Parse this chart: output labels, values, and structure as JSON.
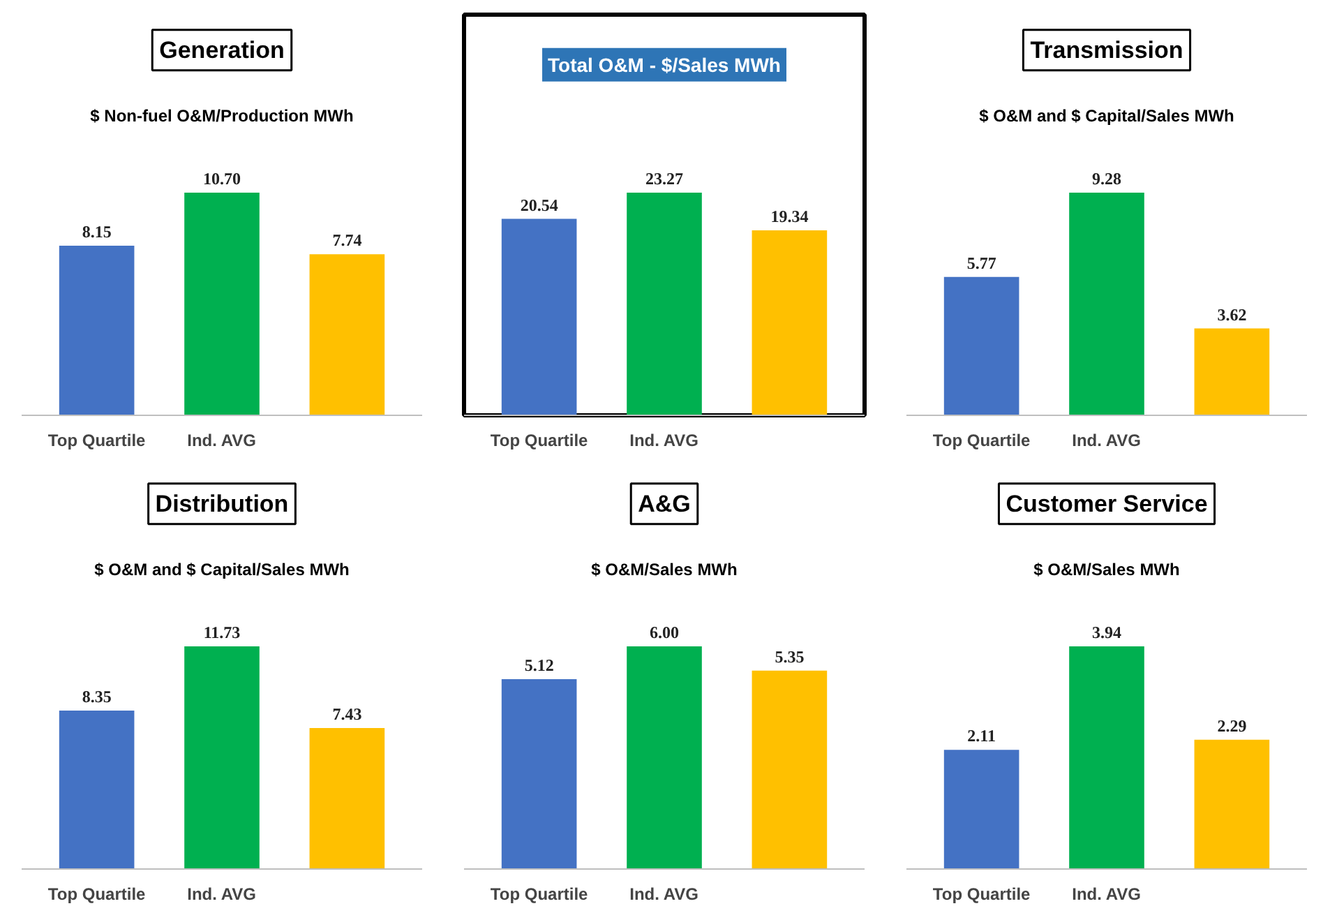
{
  "chart_data": [
    {
      "type": "bar",
      "title": "Generation",
      "subtitle": "$ Non-fuel O&M/Production MWh",
      "categories": [
        "Top Quartile",
        "Ind. AVG",
        null
      ],
      "values": [
        8.15,
        10.7,
        7.74
      ],
      "value_labels": [
        "8.15",
        "10.70",
        "7.74"
      ],
      "colors": [
        "#4472c4",
        "#00b050",
        "#ffc000"
      ]
    },
    {
      "type": "bar",
      "title": "Total O&M - $/Sales MWh",
      "categories": [
        "Top Quartile",
        "Ind. AVG",
        null
      ],
      "values": [
        20.54,
        23.27,
        19.34
      ],
      "value_labels": [
        "20.54",
        "23.27",
        "19.34"
      ],
      "colors": [
        "#4472c4",
        "#00b050",
        "#ffc000"
      ]
    },
    {
      "type": "bar",
      "title": "Transmission",
      "subtitle": "$ O&M and $ Capital/Sales MWh",
      "categories": [
        "Top Quartile",
        "Ind. AVG",
        null
      ],
      "values": [
        5.77,
        9.28,
        3.62
      ],
      "value_labels": [
        "5.77",
        "9.28",
        "3.62"
      ],
      "colors": [
        "#4472c4",
        "#00b050",
        "#ffc000"
      ]
    },
    {
      "type": "bar",
      "title": "Distribution",
      "subtitle": "$ O&M and $ Capital/Sales MWh",
      "categories": [
        "Top Quartile",
        "Ind. AVG",
        null
      ],
      "values": [
        8.35,
        11.73,
        7.43
      ],
      "value_labels": [
        "8.35",
        "11.73",
        "7.43"
      ],
      "colors": [
        "#4472c4",
        "#00b050",
        "#ffc000"
      ]
    },
    {
      "type": "bar",
      "title": "A&G",
      "subtitle": "$ O&M/Sales MWh",
      "categories": [
        "Top Quartile",
        "Ind. AVG",
        null
      ],
      "values": [
        5.12,
        6.0,
        5.35
      ],
      "value_labels": [
        "5.12",
        "6.00",
        "5.35"
      ],
      "colors": [
        "#4472c4",
        "#00b050",
        "#ffc000"
      ]
    },
    {
      "type": "bar",
      "title": "Customer Service",
      "subtitle": "$ O&M/Sales MWh",
      "categories": [
        "Top Quartile",
        "Ind. AVG",
        null
      ],
      "values": [
        2.11,
        3.94,
        2.29
      ],
      "value_labels": [
        "2.11",
        "3.94",
        "2.29"
      ],
      "colors": [
        "#4472c4",
        "#00b050",
        "#ffc000"
      ]
    }
  ]
}
